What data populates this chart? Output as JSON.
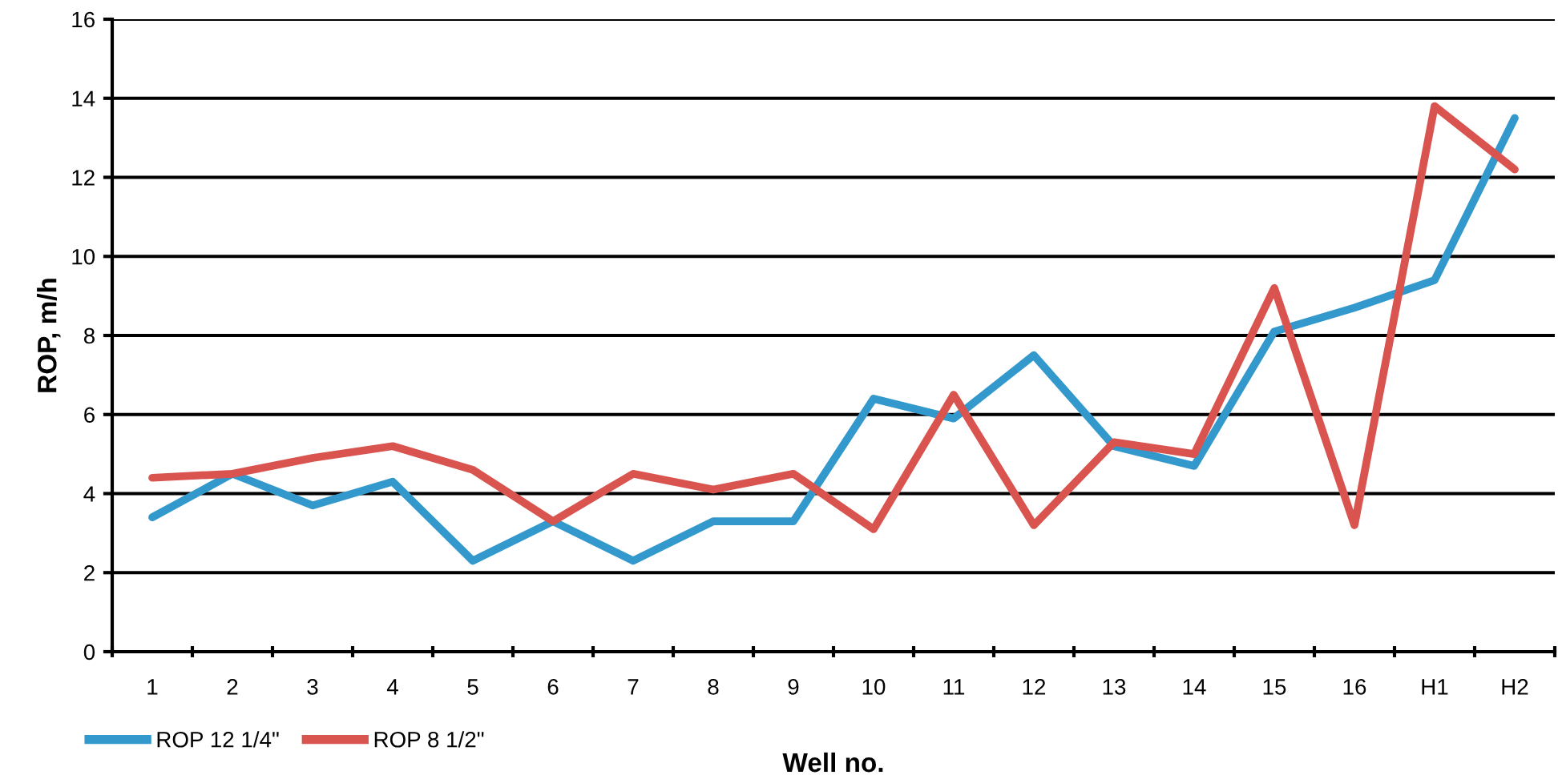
{
  "chart_data": {
    "type": "line",
    "xlabel": "Well no.",
    "ylabel": "ROP, m/h",
    "categories": [
      "1",
      "2",
      "3",
      "4",
      "5",
      "6",
      "7",
      "8",
      "9",
      "10",
      "11",
      "12",
      "13",
      "14",
      "15",
      "16",
      "H1",
      "H2"
    ],
    "series": [
      {
        "name": "ROP 12 1/4\"",
        "color": "#3399cc",
        "values": [
          3.4,
          4.5,
          3.7,
          4.3,
          2.3,
          3.3,
          2.3,
          3.3,
          3.3,
          6.4,
          5.9,
          7.5,
          5.2,
          4.7,
          8.1,
          8.7,
          9.4,
          13.5
        ]
      },
      {
        "name": "ROP 8 1/2\"",
        "color": "#d9534f",
        "values": [
          4.4,
          4.5,
          4.9,
          5.2,
          4.6,
          3.3,
          4.5,
          4.1,
          4.5,
          3.1,
          6.5,
          3.2,
          5.3,
          5.0,
          9.2,
          3.2,
          13.8,
          12.2
        ]
      }
    ],
    "ylim": [
      0,
      16
    ],
    "yticks": [
      0,
      2,
      4,
      6,
      8,
      10,
      12,
      14,
      16
    ],
    "grid": "y",
    "legend": "bottom left",
    "marker": "none",
    "line_style": "solid"
  }
}
